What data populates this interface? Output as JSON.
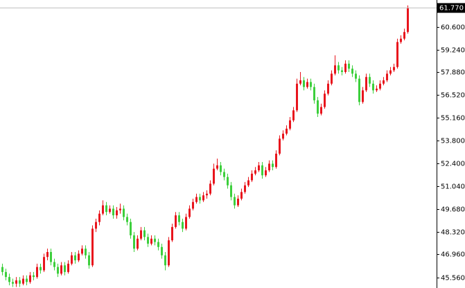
{
  "chart_data": {
    "type": "candlestick",
    "up_color": "#e8141c",
    "down_color": "#3ccf3c",
    "ylim": [
      44.94,
      62.22
    ],
    "yticks": [
      {
        "value": 45.56,
        "label": "45.560"
      },
      {
        "value": 46.96,
        "label": "46.960"
      },
      {
        "value": 48.32,
        "label": "48.320"
      },
      {
        "value": 49.68,
        "label": "49.680"
      },
      {
        "value": 51.04,
        "label": "51.040"
      },
      {
        "value": 52.4,
        "label": "52.400"
      },
      {
        "value": 53.8,
        "label": "53.800"
      },
      {
        "value": 55.16,
        "label": "55.160"
      },
      {
        "value": 56.52,
        "label": "56.520"
      },
      {
        "value": 57.88,
        "label": "57.880"
      },
      {
        "value": 59.24,
        "label": "59.240"
      },
      {
        "value": 60.6,
        "label": "60.600"
      }
    ],
    "last_price": {
      "value": 61.77,
      "label": "61.770"
    },
    "candles": [
      [
        46.2,
        46.4,
        45.7,
        45.9
      ],
      [
        45.9,
        46.1,
        45.4,
        45.6
      ],
      [
        45.6,
        45.8,
        45.1,
        45.3
      ],
      [
        45.3,
        45.5,
        45.0,
        45.2
      ],
      [
        45.2,
        45.6,
        45.0,
        45.4
      ],
      [
        45.4,
        45.6,
        45.0,
        45.2
      ],
      [
        45.2,
        45.7,
        45.1,
        45.5
      ],
      [
        45.5,
        45.7,
        45.1,
        45.3
      ],
      [
        45.3,
        45.9,
        45.2,
        45.7
      ],
      [
        45.7,
        45.9,
        45.4,
        45.6
      ],
      [
        45.6,
        46.4,
        45.5,
        46.2
      ],
      [
        46.2,
        46.4,
        45.8,
        46.0
      ],
      [
        46.0,
        47.0,
        45.9,
        46.8
      ],
      [
        46.8,
        47.3,
        46.6,
        47.1
      ],
      [
        47.1,
        47.3,
        46.3,
        46.5
      ],
      [
        46.5,
        46.7,
        46.0,
        46.2
      ],
      [
        46.2,
        46.4,
        45.6,
        45.8
      ],
      [
        45.8,
        46.5,
        45.7,
        46.3
      ],
      [
        46.3,
        46.5,
        45.7,
        45.9
      ],
      [
        45.9,
        46.6,
        45.8,
        46.4
      ],
      [
        46.4,
        47.1,
        46.3,
        46.9
      ],
      [
        46.9,
        47.1,
        46.4,
        46.6
      ],
      [
        46.6,
        47.2,
        46.5,
        47.0
      ],
      [
        47.0,
        47.5,
        46.9,
        47.3
      ],
      [
        47.3,
        47.5,
        46.7,
        46.9
      ],
      [
        46.9,
        47.1,
        46.1,
        46.3
      ],
      [
        46.3,
        48.7,
        46.2,
        48.5
      ],
      [
        48.5,
        49.1,
        48.3,
        48.9
      ],
      [
        48.9,
        49.6,
        48.7,
        49.4
      ],
      [
        49.4,
        50.2,
        49.3,
        49.9
      ],
      [
        49.9,
        50.1,
        49.3,
        49.5
      ],
      [
        49.5,
        49.9,
        49.4,
        49.7
      ],
      [
        49.7,
        49.9,
        49.1,
        49.3
      ],
      [
        49.3,
        49.8,
        49.1,
        49.6
      ],
      [
        49.6,
        50.0,
        49.4,
        49.7
      ],
      [
        49.7,
        49.9,
        49.0,
        49.2
      ],
      [
        49.2,
        49.4,
        48.7,
        48.9
      ],
      [
        48.9,
        49.1,
        47.9,
        48.1
      ],
      [
        48.1,
        48.3,
        47.1,
        47.3
      ],
      [
        47.3,
        48.1,
        47.2,
        47.9
      ],
      [
        47.9,
        48.6,
        47.8,
        48.4
      ],
      [
        48.4,
        48.6,
        47.8,
        48.0
      ],
      [
        48.0,
        48.2,
        47.4,
        47.6
      ],
      [
        47.6,
        48.1,
        47.5,
        47.9
      ],
      [
        47.9,
        48.1,
        47.5,
        47.7
      ],
      [
        47.7,
        47.9,
        47.2,
        47.4
      ],
      [
        47.4,
        47.6,
        46.7,
        46.9
      ],
      [
        46.9,
        47.1,
        46.0,
        46.3
      ],
      [
        46.3,
        48.0,
        46.2,
        47.8
      ],
      [
        47.8,
        48.8,
        47.7,
        48.6
      ],
      [
        48.6,
        49.5,
        48.5,
        49.3
      ],
      [
        49.3,
        49.5,
        48.7,
        48.9
      ],
      [
        48.9,
        49.1,
        48.3,
        48.5
      ],
      [
        48.5,
        49.4,
        48.4,
        49.2
      ],
      [
        49.2,
        49.9,
        49.1,
        49.7
      ],
      [
        49.7,
        50.3,
        49.6,
        50.1
      ],
      [
        50.1,
        50.6,
        50.0,
        50.4
      ],
      [
        50.4,
        50.6,
        50.0,
        50.2
      ],
      [
        50.2,
        50.7,
        50.1,
        50.5
      ],
      [
        50.5,
        50.8,
        50.3,
        50.6
      ],
      [
        50.6,
        51.4,
        50.5,
        51.2
      ],
      [
        51.2,
        52.4,
        51.1,
        52.1
      ],
      [
        52.1,
        52.7,
        52.0,
        52.3
      ],
      [
        52.3,
        52.5,
        51.7,
        51.9
      ],
      [
        51.9,
        52.1,
        51.4,
        51.6
      ],
      [
        51.6,
        51.8,
        50.9,
        51.1
      ],
      [
        51.1,
        51.3,
        50.2,
        50.4
      ],
      [
        50.4,
        50.6,
        49.7,
        49.9
      ],
      [
        49.9,
        50.5,
        49.8,
        50.3
      ],
      [
        50.3,
        50.9,
        50.2,
        50.7
      ],
      [
        50.7,
        51.3,
        50.6,
        51.1
      ],
      [
        51.1,
        51.6,
        51.0,
        51.4
      ],
      [
        51.4,
        52.0,
        51.3,
        51.8
      ],
      [
        51.8,
        52.2,
        51.7,
        52.0
      ],
      [
        52.0,
        52.5,
        51.9,
        52.3
      ],
      [
        52.3,
        52.5,
        51.5,
        51.7
      ],
      [
        51.7,
        52.2,
        51.6,
        52.0
      ],
      [
        52.0,
        52.6,
        51.9,
        52.4
      ],
      [
        52.4,
        52.6,
        52.0,
        52.2
      ],
      [
        52.2,
        53.2,
        52.1,
        53.0
      ],
      [
        53.0,
        54.1,
        52.9,
        53.9
      ],
      [
        53.9,
        54.4,
        53.8,
        54.2
      ],
      [
        54.2,
        54.7,
        54.1,
        54.5
      ],
      [
        54.5,
        55.2,
        54.4,
        55.0
      ],
      [
        55.0,
        55.8,
        54.9,
        55.6
      ],
      [
        55.6,
        57.5,
        55.5,
        57.2
      ],
      [
        57.2,
        57.9,
        57.1,
        57.4
      ],
      [
        57.4,
        57.6,
        56.8,
        57.0
      ],
      [
        57.0,
        57.5,
        56.9,
        57.3
      ],
      [
        57.3,
        57.5,
        56.8,
        57.0
      ],
      [
        57.0,
        57.2,
        56.0,
        56.2
      ],
      [
        56.2,
        56.4,
        55.2,
        55.4
      ],
      [
        55.4,
        56.0,
        55.3,
        55.8
      ],
      [
        55.8,
        56.8,
        55.7,
        56.6
      ],
      [
        56.6,
        57.4,
        56.5,
        57.2
      ],
      [
        57.2,
        58.0,
        57.1,
        57.8
      ],
      [
        57.8,
        58.9,
        57.7,
        58.3
      ],
      [
        58.3,
        58.5,
        57.8,
        58.0
      ],
      [
        58.0,
        58.2,
        57.7,
        57.9
      ],
      [
        57.9,
        58.6,
        57.8,
        58.4
      ],
      [
        58.4,
        58.6,
        57.9,
        58.1
      ],
      [
        58.1,
        58.3,
        57.6,
        57.8
      ],
      [
        57.8,
        58.0,
        57.3,
        57.5
      ],
      [
        57.5,
        57.7,
        55.9,
        56.1
      ],
      [
        56.1,
        57.0,
        56.0,
        56.8
      ],
      [
        56.8,
        57.8,
        56.7,
        57.6
      ],
      [
        57.6,
        57.8,
        57.0,
        57.2
      ],
      [
        57.2,
        57.4,
        56.6,
        56.8
      ],
      [
        56.8,
        57.1,
        56.7,
        56.9
      ],
      [
        56.9,
        57.4,
        56.8,
        57.2
      ],
      [
        57.2,
        57.6,
        57.1,
        57.4
      ],
      [
        57.4,
        58.0,
        57.3,
        57.8
      ],
      [
        57.8,
        58.2,
        57.7,
        58.0
      ],
      [
        58.0,
        58.4,
        57.9,
        58.2
      ],
      [
        58.2,
        59.9,
        58.1,
        59.7
      ],
      [
        59.7,
        60.1,
        59.6,
        59.9
      ],
      [
        59.9,
        60.5,
        59.8,
        60.3
      ],
      [
        60.3,
        61.9,
        60.2,
        61.77
      ]
    ]
  }
}
